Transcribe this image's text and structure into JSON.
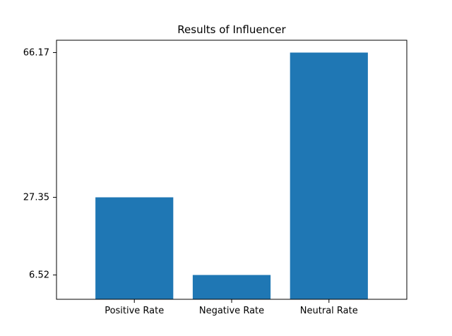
{
  "chart_data": {
    "type": "bar",
    "title": "Results of Influencer",
    "categories": [
      "Positive Rate",
      "Negative Rate",
      "Neutral Rate"
    ],
    "values": [
      27.35,
      6.52,
      66.17
    ],
    "y_ticks": [
      6.52,
      27.35,
      66.17
    ],
    "y_tick_labels": [
      "6.52",
      "27.35",
      "66.17"
    ],
    "ylim": [
      0,
      66.17
    ],
    "xlabel": "",
    "ylabel": "",
    "grid": false,
    "bar_color": "#1f77b4"
  }
}
